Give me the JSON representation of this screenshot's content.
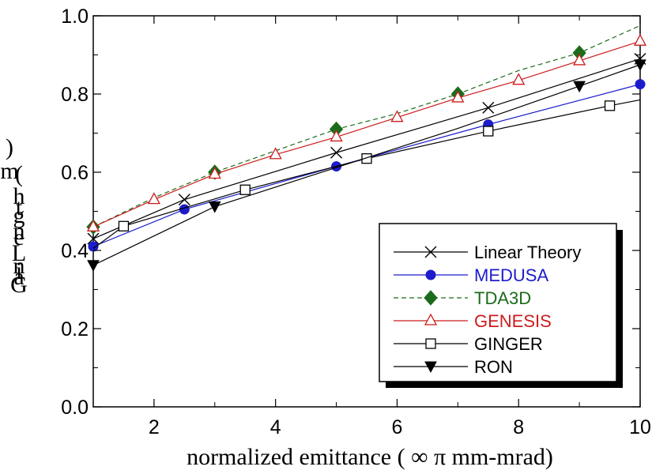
{
  "chart_data": {
    "type": "line",
    "title": "",
    "xlabel": "normalized emittance ( ∞ π mm-mrad)",
    "ylabel_chars": [
      ")",
      "m",
      "(",
      "h",
      "t",
      "g",
      "n",
      "e",
      "L",
      "n",
      "i",
      "a",
      "G"
    ],
    "xlim": [
      1,
      10
    ],
    "ylim": [
      0.0,
      1.0
    ],
    "x_ticks": [
      2,
      4,
      6,
      8,
      10
    ],
    "x_tick_labels": [
      "2",
      "4",
      "6",
      "8",
      "10"
    ],
    "y_ticks": [
      0.0,
      0.2,
      0.4,
      0.6,
      0.8,
      1.0
    ],
    "y_tick_labels": [
      "0.0",
      "0.2",
      "0.4",
      "0.6",
      "0.8",
      "1.0"
    ],
    "grid": false,
    "legend_position": "bottom-right",
    "series": [
      {
        "name": "Linear Theory",
        "color": "#000000",
        "text_color": "#000000",
        "marker": "x",
        "dash": false,
        "line_x": [
          1,
          2.5,
          5,
          7.5,
          10
        ],
        "line_y": [
          0.43,
          0.53,
          0.65,
          0.765,
          0.89
        ],
        "marker_x": [
          1,
          2.5,
          5,
          7.5,
          10
        ],
        "marker_y": [
          0.43,
          0.53,
          0.65,
          0.765,
          0.89
        ]
      },
      {
        "name": "MEDUSA",
        "color": "#1c1ccc",
        "text_color": "#1c1ccc",
        "marker": "circle",
        "dash": false,
        "line_x": [
          1,
          2.5,
          5,
          7.5,
          10
        ],
        "line_y": [
          0.41,
          0.505,
          0.615,
          0.722,
          0.825
        ],
        "marker_x": [
          1,
          2.5,
          5,
          7.5,
          10
        ],
        "marker_y": [
          0.41,
          0.505,
          0.615,
          0.722,
          0.825
        ]
      },
      {
        "name": "TDA3D",
        "color": "#1c6b1c",
        "text_color": "#1c6b1c",
        "marker": "diamond",
        "dash": true,
        "line_x": [
          1,
          2,
          3,
          4,
          5,
          6,
          7,
          8,
          9,
          10
        ],
        "line_y": [
          0.46,
          0.535,
          0.6,
          0.655,
          0.71,
          0.75,
          0.8,
          0.86,
          0.905,
          0.975
        ],
        "marker_x": [
          1,
          3,
          5,
          7,
          9
        ],
        "marker_y": [
          0.46,
          0.6,
          0.71,
          0.8,
          0.905
        ]
      },
      {
        "name": "GENESIS",
        "color": "#cc1c1c",
        "text_color": "#cc1c1c",
        "marker": "triangle-open",
        "dash": false,
        "line_x": [
          1,
          2,
          3,
          4,
          5,
          6,
          7,
          8,
          9,
          10
        ],
        "line_y": [
          0.46,
          0.53,
          0.595,
          0.645,
          0.69,
          0.74,
          0.79,
          0.835,
          0.885,
          0.935
        ],
        "marker_x": [
          1,
          2,
          3,
          4,
          5,
          6,
          7,
          8,
          9,
          10
        ],
        "marker_y": [
          0.46,
          0.53,
          0.595,
          0.645,
          0.69,
          0.74,
          0.79,
          0.835,
          0.885,
          0.935
        ]
      },
      {
        "name": "GINGER",
        "color": "#000000",
        "text_color": "#000000",
        "marker": "square-open",
        "dash": false,
        "line_x": [
          1,
          1.5,
          3.5,
          5.5,
          7.5,
          9.5,
          10
        ],
        "line_y": [
          0.405,
          0.462,
          0.555,
          0.635,
          0.705,
          0.77,
          0.785
        ],
        "marker_x": [
          1.5,
          3.5,
          5.5,
          7.5,
          9.5
        ],
        "marker_y": [
          0.462,
          0.555,
          0.635,
          0.705,
          0.77
        ]
      },
      {
        "name": "RON",
        "color": "#000000",
        "text_color": "#000000",
        "marker": "triangle-down",
        "dash": false,
        "line_x": [
          1,
          3,
          5,
          7,
          9,
          10
        ],
        "line_y": [
          0.362,
          0.512,
          0.612,
          0.712,
          0.82,
          0.875
        ],
        "marker_x": [
          1,
          3,
          9,
          10
        ],
        "marker_y": [
          0.362,
          0.512,
          0.82,
          0.875
        ]
      }
    ]
  }
}
